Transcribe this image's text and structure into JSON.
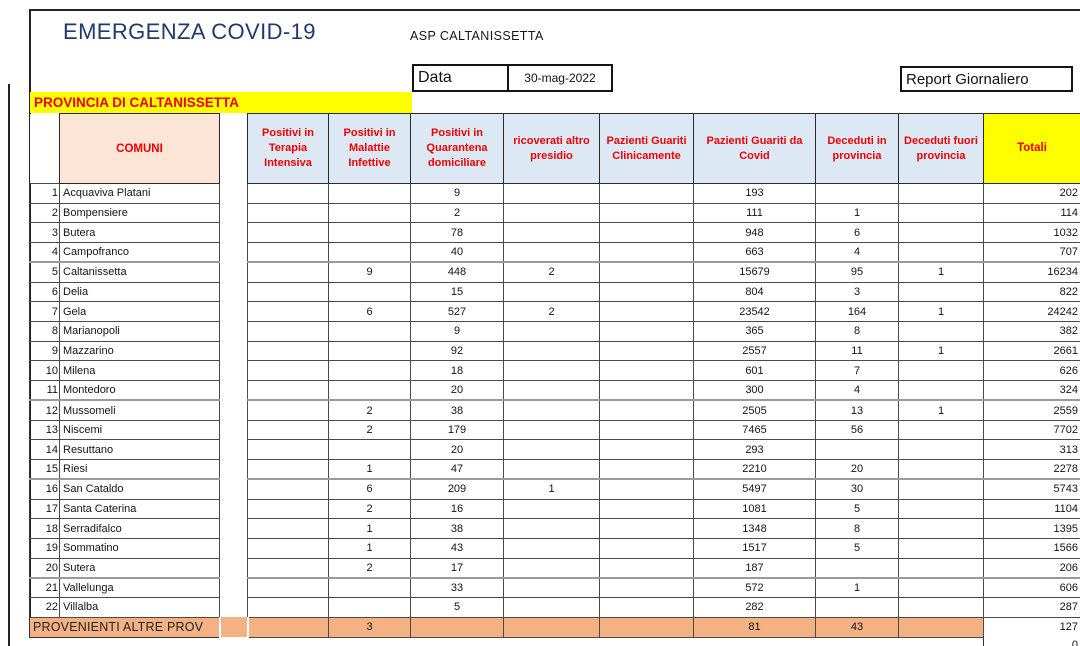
{
  "app": {
    "title": "EMERGENZA COVID-19",
    "subtitle": "ASP CALTANISSETTA"
  },
  "meta": {
    "date_label": "Data",
    "date_value": "30-mag-2022",
    "report_label": "Report Giornaliero",
    "province_banner": "PROVINCIA DI CALTANISSETTA"
  },
  "table": {
    "comuni_header": "COMUNI",
    "columns": [
      "Positivi in Terapia Intensiva",
      "Positivi in Malattie Infettive",
      "Positivi in Quarantena domiciliare",
      "ricoverati altro presidio",
      "Pazienti Guariti Clinicamente",
      "Pazienti Guariti da Covid",
      "Deceduti in provincia",
      "Deceduti fuori provincia",
      "Totali"
    ],
    "rows": [
      {
        "n": "1",
        "comune": "Acquaviva Platani",
        "values": [
          "",
          "",
          "9",
          "",
          "",
          "193",
          "",
          "",
          "202"
        ]
      },
      {
        "n": "2",
        "comune": "Bompensiere",
        "values": [
          "",
          "",
          "2",
          "",
          "",
          "111",
          "1",
          "",
          "114"
        ]
      },
      {
        "n": "3",
        "comune": "Butera",
        "values": [
          "",
          "",
          "78",
          "",
          "",
          "948",
          "6",
          "",
          "1032"
        ]
      },
      {
        "n": "4",
        "comune": "Campofranco",
        "values": [
          "",
          "",
          "40",
          "",
          "",
          "663",
          "4",
          "",
          "707"
        ]
      },
      {
        "n": "5",
        "comune": "Caltanissetta",
        "values": [
          "",
          "9",
          "448",
          "2",
          "",
          "15679",
          "95",
          "1",
          "16234"
        ]
      },
      {
        "n": "6",
        "comune": "Delia",
        "values": [
          "",
          "",
          "15",
          "",
          "",
          "804",
          "3",
          "",
          "822"
        ]
      },
      {
        "n": "7",
        "comune": "Gela",
        "values": [
          "",
          "6",
          "527",
          "2",
          "",
          "23542",
          "164",
          "1",
          "24242"
        ]
      },
      {
        "n": "8",
        "comune": "Marianopoli",
        "values": [
          "",
          "",
          "9",
          "",
          "",
          "365",
          "8",
          "",
          "382"
        ]
      },
      {
        "n": "9",
        "comune": "Mazzarino",
        "values": [
          "",
          "",
          "92",
          "",
          "",
          "2557",
          "11",
          "1",
          "2661"
        ]
      },
      {
        "n": "10",
        "comune": "Milena",
        "values": [
          "",
          "",
          "18",
          "",
          "",
          "601",
          "7",
          "",
          "626"
        ]
      },
      {
        "n": "11",
        "comune": "Montedoro",
        "values": [
          "",
          "",
          "20",
          "",
          "",
          "300",
          "4",
          "",
          "324"
        ]
      },
      {
        "n": "12",
        "comune": "Mussomeli",
        "values": [
          "",
          "2",
          "38",
          "",
          "",
          "2505",
          "13",
          "1",
          "2559"
        ]
      },
      {
        "n": "13",
        "comune": "Niscemi",
        "values": [
          "",
          "2",
          "179",
          "",
          "",
          "7465",
          "56",
          "",
          "7702"
        ]
      },
      {
        "n": "14",
        "comune": "Resuttano",
        "values": [
          "",
          "",
          "20",
          "",
          "",
          "293",
          "",
          "",
          "313"
        ]
      },
      {
        "n": "15",
        "comune": "Riesi",
        "values": [
          "",
          "1",
          "47",
          "",
          "",
          "2210",
          "20",
          "",
          "2278"
        ]
      },
      {
        "n": "16",
        "comune": "San Cataldo",
        "values": [
          "",
          "6",
          "209",
          "1",
          "",
          "5497",
          "30",
          "",
          "5743"
        ]
      },
      {
        "n": "17",
        "comune": "Santa Caterina",
        "values": [
          "",
          "2",
          "16",
          "",
          "",
          "1081",
          "5",
          "",
          "1104"
        ]
      },
      {
        "n": "18",
        "comune": "Serradifalco",
        "values": [
          "",
          "1",
          "38",
          "",
          "",
          "1348",
          "8",
          "",
          "1395"
        ]
      },
      {
        "n": "19",
        "comune": "Sommatino",
        "values": [
          "",
          "1",
          "43",
          "",
          "",
          "1517",
          "5",
          "",
          "1566"
        ]
      },
      {
        "n": "20",
        "comune": "Sutera",
        "values": [
          "",
          "2",
          "17",
          "",
          "",
          "187",
          "",
          "",
          "206"
        ]
      },
      {
        "n": "21",
        "comune": "Vallelunga",
        "values": [
          "",
          "",
          "33",
          "",
          "",
          "572",
          "1",
          "",
          "606"
        ]
      },
      {
        "n": "22",
        "comune": "Villalba",
        "values": [
          "",
          "",
          "5",
          "",
          "",
          "282",
          "",
          "",
          "287"
        ]
      }
    ],
    "footer_row": {
      "label": "PROVENIENTI ALTRE PROV",
      "values": [
        "",
        "3",
        "",
        "",
        "",
        "81",
        "43",
        "",
        "127"
      ]
    },
    "overflow_value": "0",
    "thick_border_rows": [
      5,
      12,
      16,
      21
    ]
  },
  "colors": {
    "banner_yellow": "#ffff00",
    "header_blue": "#dce9f5",
    "comuni_peach": "#fce4d6",
    "footer_orange": "#f4b183",
    "header_red": "#ee0000",
    "title_navy": "#1e3a6e"
  }
}
